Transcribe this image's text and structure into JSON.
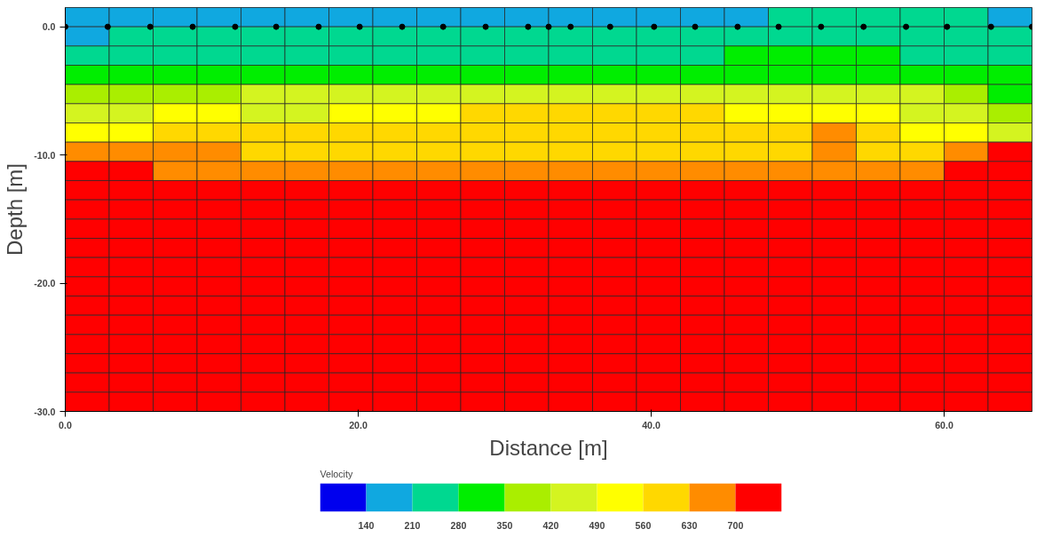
{
  "chart_data": {
    "type": "heatmap",
    "xlabel": "Distance [m]",
    "ylabel": "Depth [m]",
    "clabel": "Velocity",
    "xlim": [
      0,
      66
    ],
    "ylim": [
      -30,
      1.5
    ],
    "xticks": [
      {
        "value": 0,
        "label": "0.0"
      },
      {
        "value": 20,
        "label": "20.0"
      },
      {
        "value": 40,
        "label": "40.0"
      },
      {
        "value": 60,
        "label": "60.0"
      }
    ],
    "yticks": [
      {
        "value": 0,
        "label": "0.0"
      },
      {
        "value": -10,
        "label": "-10.0"
      },
      {
        "value": -20,
        "label": "-20.0"
      },
      {
        "value": -30,
        "label": "-30.0"
      }
    ],
    "x": [
      1.5,
      4.5,
      7.5,
      10.5,
      13.5,
      16.5,
      19.5,
      22.5,
      25.5,
      28.5,
      31.5,
      34.5,
      37.5,
      40.5,
      43.5,
      46.5,
      49.5,
      52.5,
      55.5,
      58.5,
      61.5,
      64.5
    ],
    "y": [
      0.75,
      -0.75,
      -2.25,
      -3.75,
      -5.25,
      -6.75,
      -8.25,
      -9.75,
      -11.25,
      -12.75,
      -14.25,
      -15.75,
      -17.25,
      -18.75,
      -20.25,
      -21.75,
      -23.25,
      -24.75,
      -26.25,
      -27.75,
      -29.25
    ],
    "clim": [
      70,
      770
    ],
    "cticks": [
      140,
      210,
      280,
      350,
      420,
      490,
      560,
      630,
      700
    ],
    "colors": [
      "#0000ee",
      "#10a8e0",
      "#00d890",
      "#00ee00",
      "#aaee00",
      "#d4f420",
      "#ffff00",
      "#ffd800",
      "#ff8c00",
      "#ff0000"
    ],
    "cells": [
      [
        175,
        175,
        175,
        175,
        175,
        175,
        175,
        175,
        175,
        175,
        175,
        175,
        175,
        175,
        175,
        175,
        245,
        245,
        245,
        245,
        245,
        175
      ],
      [
        175,
        245,
        245,
        245,
        245,
        245,
        245,
        245,
        245,
        245,
        245,
        245,
        245,
        245,
        245,
        245,
        245,
        245,
        245,
        245,
        245,
        245
      ],
      [
        245,
        245,
        245,
        245,
        245,
        245,
        245,
        245,
        245,
        245,
        245,
        245,
        245,
        245,
        245,
        315,
        315,
        315,
        315,
        245,
        245,
        245
      ],
      [
        315,
        315,
        315,
        315,
        315,
        315,
        315,
        315,
        315,
        315,
        315,
        315,
        315,
        315,
        315,
        315,
        315,
        315,
        315,
        315,
        315,
        315
      ],
      [
        385,
        385,
        385,
        385,
        455,
        455,
        455,
        455,
        455,
        455,
        455,
        455,
        455,
        455,
        455,
        455,
        455,
        455,
        455,
        455,
        385,
        315
      ],
      [
        455,
        455,
        525,
        525,
        455,
        455,
        525,
        525,
        525,
        595,
        595,
        595,
        595,
        595,
        595,
        525,
        525,
        525,
        525,
        455,
        455,
        385
      ],
      [
        525,
        525,
        595,
        595,
        595,
        595,
        595,
        595,
        595,
        595,
        595,
        595,
        595,
        595,
        595,
        595,
        595,
        665,
        595,
        525,
        525,
        455
      ],
      [
        665,
        665,
        665,
        665,
        595,
        595,
        595,
        595,
        595,
        595,
        595,
        595,
        595,
        595,
        595,
        595,
        595,
        665,
        595,
        595,
        665,
        750
      ],
      [
        750,
        750,
        665,
        665,
        665,
        665,
        665,
        665,
        665,
        665,
        665,
        665,
        665,
        665,
        665,
        665,
        665,
        665,
        665,
        665,
        750,
        750
      ],
      [
        750,
        750,
        750,
        750,
        750,
        750,
        750,
        750,
        750,
        750,
        750,
        750,
        750,
        750,
        750,
        750,
        750,
        750,
        750,
        750,
        750,
        750
      ],
      [
        750,
        750,
        750,
        750,
        750,
        750,
        750,
        750,
        750,
        750,
        750,
        750,
        750,
        750,
        750,
        750,
        750,
        750,
        750,
        750,
        750,
        750
      ],
      [
        750,
        750,
        750,
        750,
        750,
        750,
        750,
        750,
        750,
        750,
        750,
        750,
        750,
        750,
        750,
        750,
        750,
        750,
        750,
        750,
        750,
        750
      ],
      [
        750,
        750,
        750,
        750,
        750,
        750,
        750,
        750,
        750,
        750,
        750,
        750,
        750,
        750,
        750,
        750,
        750,
        750,
        750,
        750,
        750,
        750
      ],
      [
        750,
        750,
        750,
        750,
        750,
        750,
        750,
        750,
        750,
        750,
        750,
        750,
        750,
        750,
        750,
        750,
        750,
        750,
        750,
        750,
        750,
        750
      ],
      [
        750,
        750,
        750,
        750,
        750,
        750,
        750,
        750,
        750,
        750,
        750,
        750,
        750,
        750,
        750,
        750,
        750,
        750,
        750,
        750,
        750,
        750
      ],
      [
        750,
        750,
        750,
        750,
        750,
        750,
        750,
        750,
        750,
        750,
        750,
        750,
        750,
        750,
        750,
        750,
        750,
        750,
        750,
        750,
        750,
        750
      ],
      [
        750,
        750,
        750,
        750,
        750,
        750,
        750,
        750,
        750,
        750,
        750,
        750,
        750,
        750,
        750,
        750,
        750,
        750,
        750,
        750,
        750,
        750
      ],
      [
        750,
        750,
        750,
        750,
        750,
        750,
        750,
        750,
        750,
        750,
        750,
        750,
        750,
        750,
        750,
        750,
        750,
        750,
        750,
        750,
        750,
        750
      ],
      [
        750,
        750,
        750,
        750,
        750,
        750,
        750,
        750,
        750,
        750,
        750,
        750,
        750,
        750,
        750,
        750,
        750,
        750,
        750,
        750,
        750,
        750
      ],
      [
        750,
        750,
        750,
        750,
        750,
        750,
        750,
        750,
        750,
        750,
        750,
        750,
        750,
        750,
        750,
        750,
        750,
        750,
        750,
        750,
        750,
        750
      ],
      [
        750,
        750,
        750,
        750,
        750,
        750,
        750,
        750,
        750,
        750,
        750,
        750,
        750,
        750,
        750,
        750,
        750,
        750,
        750,
        750,
        750,
        750
      ]
    ],
    "series": [
      {
        "type": "scatter",
        "color": "#000000",
        "marker": "circle",
        "x": [
          0,
          2.9,
          5.8,
          8.7,
          11.6,
          14.4,
          17.3,
          20.1,
          23.0,
          25.8,
          28.7,
          31.6,
          33.0,
          34.5,
          37.2,
          40.2,
          43.0,
          45.9,
          48.7,
          51.6,
          54.5,
          57.4,
          60.2,
          63.2,
          66.0
        ],
        "values": [
          0,
          0,
          0,
          0,
          0,
          0,
          0,
          0,
          0,
          0,
          0,
          0,
          0,
          0,
          0,
          0,
          0,
          0,
          0,
          0,
          0,
          0,
          0,
          0,
          0
        ]
      }
    ]
  }
}
